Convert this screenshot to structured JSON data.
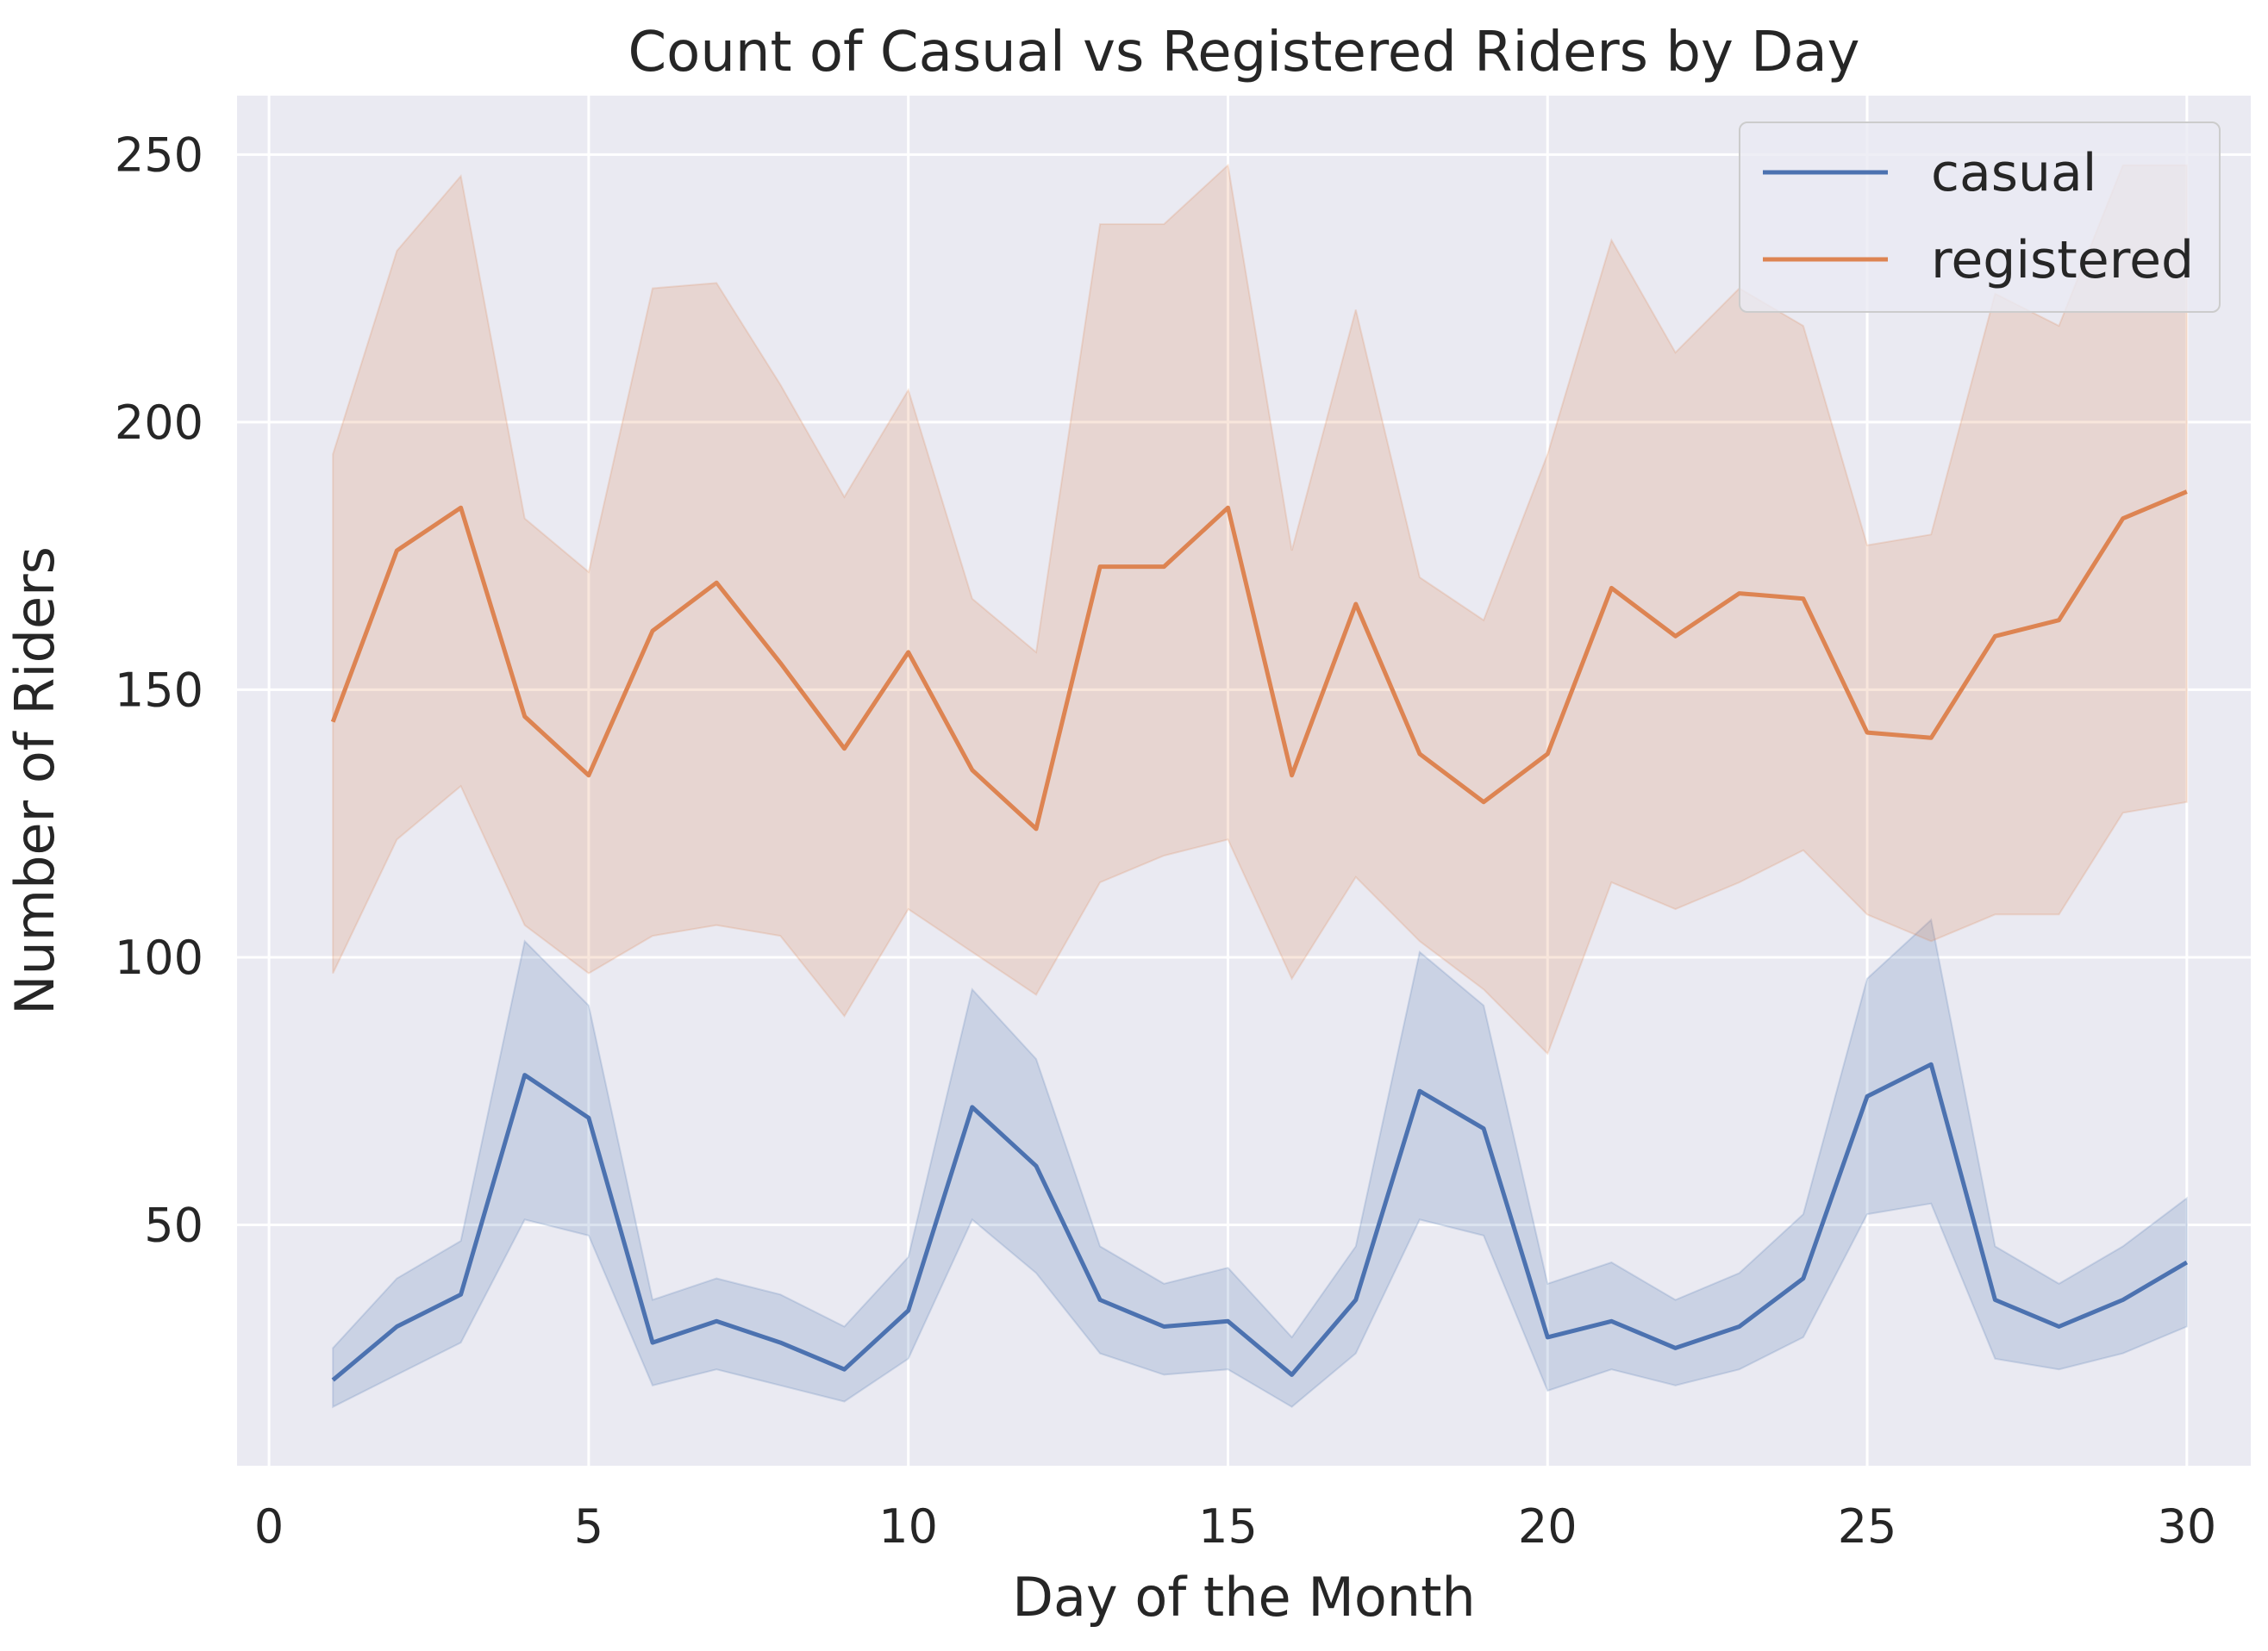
{
  "chart_data": {
    "type": "line",
    "title": "Count of Casual vs Registered Riders by Day",
    "xlabel": "Day of the Month",
    "ylabel": "Number of Riders",
    "xlim": [
      -0.5,
      31
    ],
    "ylim": [
      5,
      261
    ],
    "xticks": [
      0,
      5,
      10,
      15,
      20,
      25,
      30
    ],
    "yticks": [
      50,
      100,
      150,
      200,
      250
    ],
    "grid": true,
    "legend_position": "top-right",
    "background_color": "#eaeaf2",
    "grid_color": "#ffffff",
    "x": [
      1,
      2,
      3,
      4,
      5,
      6,
      7,
      8,
      9,
      10,
      11,
      12,
      13,
      14,
      15,
      16,
      17,
      18,
      19,
      20,
      21,
      22,
      23,
      24,
      25,
      26,
      27,
      28,
      29,
      30
    ],
    "series": [
      {
        "name": "casual",
        "color": "#4c72b0",
        "values": [
          21,
          31,
          37,
          78,
          70,
          28,
          32,
          28,
          23,
          34,
          72,
          61,
          36,
          31,
          32,
          22,
          36,
          75,
          68,
          29,
          32,
          27,
          31,
          40,
          74,
          80,
          36,
          31,
          36,
          43
        ],
        "ci_lower": [
          16,
          22,
          28,
          51,
          48,
          20,
          23,
          20,
          17,
          25,
          51,
          41,
          26,
          22,
          23,
          16,
          26,
          51,
          48,
          19,
          23,
          20,
          23,
          29,
          52,
          54,
          25,
          23,
          26,
          31
        ],
        "ci_upper": [
          27,
          40,
          47,
          103,
          91,
          36,
          40,
          37,
          31,
          44,
          94,
          81,
          46,
          39,
          42,
          29,
          46,
          101,
          91,
          39,
          43,
          36,
          41,
          52,
          96,
          107,
          46,
          39,
          46,
          55
        ]
      },
      {
        "name": "registered",
        "color": "#dd8452",
        "values": [
          144,
          176,
          184,
          145,
          134,
          161,
          170,
          155,
          139,
          157,
          135,
          124,
          173,
          173,
          184,
          134,
          166,
          138,
          129,
          138,
          169,
          160,
          168,
          167,
          142,
          141,
          160,
          163,
          182,
          187
        ],
        "ci_lower": [
          97,
          122,
          132,
          106,
          97,
          104,
          106,
          104,
          89,
          109,
          101,
          93,
          114,
          119,
          122,
          96,
          115,
          103,
          94,
          82,
          114,
          109,
          114,
          120,
          108,
          103,
          108,
          108,
          127,
          129
        ],
        "ci_upper": [
          194,
          232,
          246,
          182,
          172,
          225,
          226,
          207,
          186,
          206,
          167,
          157,
          237,
          237,
          248,
          176,
          221,
          171,
          163,
          194,
          234,
          213,
          225,
          218,
          177,
          179,
          224,
          218,
          248,
          248
        ]
      }
    ]
  }
}
